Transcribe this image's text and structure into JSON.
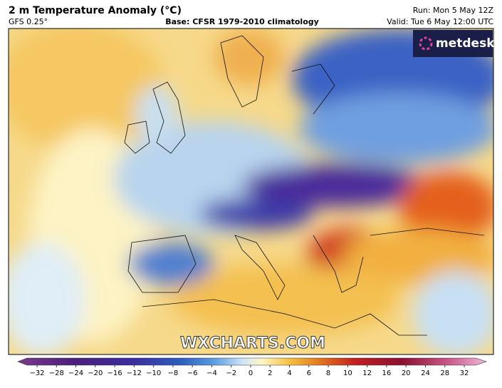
{
  "header": {
    "title": "2 m Temperature Anomaly (°C)",
    "model": "GFS 0.25°",
    "base": "Base: CFSR 1979-2010 climatology",
    "run": "Run: Mon 5 May 12Z",
    "valid": "Valid: Tue 6 May 12:00 UTC"
  },
  "logo": "metdesk",
  "watermark": "WXCHARTS.COM",
  "colorbar": {
    "ticks": [
      {
        "value": -32,
        "label": "−32"
      },
      {
        "value": -28,
        "label": "−28"
      },
      {
        "value": -24,
        "label": "−24"
      },
      {
        "value": -20,
        "label": "−20"
      },
      {
        "value": -16,
        "label": "−16"
      },
      {
        "value": -12,
        "label": "−12"
      },
      {
        "value": -10,
        "label": "−10"
      },
      {
        "value": -8,
        "label": "−8"
      },
      {
        "value": -6,
        "label": "−6"
      },
      {
        "value": -4,
        "label": "−4"
      },
      {
        "value": -2,
        "label": "−2"
      },
      0,
      2,
      4,
      6,
      8,
      10,
      12,
      16,
      20,
      24,
      28,
      32
    ]
  }
}
